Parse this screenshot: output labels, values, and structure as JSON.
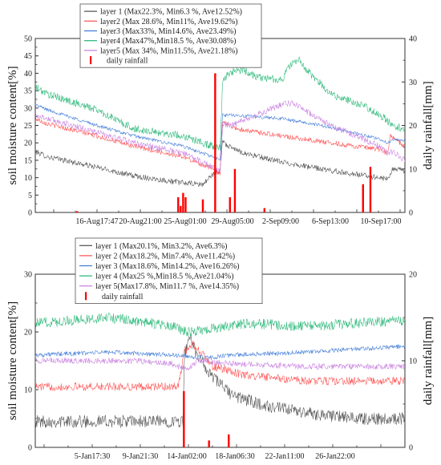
{
  "chart_data": [
    {
      "type": "line",
      "ylabel": "soil moisture content[%]",
      "y2label": "daily rainfall[mm]",
      "ylim": [
        0,
        50
      ],
      "y2lim": [
        0,
        40
      ],
      "yticks": [
        0,
        5,
        10,
        15,
        20,
        25,
        30,
        35,
        40,
        45,
        50
      ],
      "y2ticks": [
        0,
        10,
        20,
        30,
        40
      ],
      "x_tick_labels": [
        "16-Aug17:47",
        "20-Aug21:00",
        "25-Aug01:00",
        "29-Aug05:00",
        "2-Sep09:00",
        "6-Sep13:00",
        "10-Sep17:00"
      ],
      "legend_position": "top-center",
      "series": [
        {
          "name": "layer 1 (Max22.3%, Min6.3 %, Ave12.52%)",
          "color": "#4d4d4d",
          "noise": 0.8,
          "points": [
            [
              0,
              17.5
            ],
            [
              5,
              16
            ],
            [
              25,
              13
            ],
            [
              40,
              10.5
            ],
            [
              60,
              8.5
            ],
            [
              68,
              8
            ],
            [
              72,
              11
            ],
            [
              75,
              12
            ],
            [
              76,
              21
            ],
            [
              78,
              19
            ],
            [
              85,
              17
            ],
            [
              100,
              14.5
            ],
            [
              120,
              12
            ],
            [
              140,
              10
            ],
            [
              143,
              9.5
            ],
            [
              145,
              12.5
            ],
            [
              150,
              12
            ]
          ]
        },
        {
          "name": "layer2 (Max 28.6%, Min11%, Ave19.62%)",
          "color": "#ff4d4d",
          "noise": 0.7,
          "points": [
            [
              0,
              27
            ],
            [
              5,
              25.5
            ],
            [
              25,
              22
            ],
            [
              40,
              19
            ],
            [
              60,
              16
            ],
            [
              72,
              12.5
            ],
            [
              75,
              11
            ],
            [
              76,
              26.5
            ],
            [
              78,
              25.5
            ],
            [
              82,
              24
            ],
            [
              100,
              22
            ],
            [
              120,
              20
            ],
            [
              140,
              18
            ],
            [
              143,
              17
            ],
            [
              144,
              22
            ],
            [
              145,
              21.5
            ],
            [
              150,
              19
            ]
          ]
        },
        {
          "name": "layer3 (Max33%, Min14.6%, Ave23.49%)",
          "color": "#3b78d8",
          "noise": 0.5,
          "points": [
            [
              0,
              31
            ],
            [
              5,
              29.5
            ],
            [
              25,
              25
            ],
            [
              40,
              22
            ],
            [
              60,
              19
            ],
            [
              72,
              16
            ],
            [
              75,
              15
            ],
            [
              76,
              28
            ],
            [
              80,
              28
            ],
            [
              100,
              27
            ],
            [
              120,
              24.5
            ],
            [
              140,
              21
            ],
            [
              143,
              20
            ],
            [
              145,
              21
            ],
            [
              150,
              20.5
            ]
          ]
        },
        {
          "name": "layer4 (Max47%,Min18.5 %, Ave30.08%)",
          "color": "#22b573",
          "noise": 1.1,
          "points": [
            [
              0,
              36
            ],
            [
              5,
              34
            ],
            [
              25,
              29.5
            ],
            [
              40,
              24
            ],
            [
              60,
              22
            ],
            [
              72,
              19
            ],
            [
              75,
              18.5
            ],
            [
              76,
              37
            ],
            [
              78,
              40
            ],
            [
              84,
              41
            ],
            [
              90,
              39
            ],
            [
              100,
              38
            ],
            [
              103,
              42
            ],
            [
              107,
              44
            ],
            [
              110,
              41
            ],
            [
              120,
              34
            ],
            [
              135,
              30
            ],
            [
              142,
              27
            ],
            [
              145,
              25
            ],
            [
              150,
              24
            ]
          ]
        },
        {
          "name": "layer5 (Max 34%, Min11.5%, Ave21.18%)",
          "color": "#c77ddf",
          "noise": 0.9,
          "points": [
            [
              0,
              28
            ],
            [
              5,
              27
            ],
            [
              25,
              23
            ],
            [
              40,
              20
            ],
            [
              60,
              17
            ],
            [
              72,
              13
            ],
            [
              75,
              11.5
            ],
            [
              76,
              25.5
            ],
            [
              80,
              25
            ],
            [
              90,
              28
            ],
            [
              100,
              31
            ],
            [
              105,
              31.5
            ],
            [
              110,
              29
            ],
            [
              120,
              25
            ],
            [
              140,
              19
            ],
            [
              143,
              17
            ],
            [
              145,
              17.5
            ],
            [
              150,
              15
            ]
          ]
        }
      ],
      "rainfall": {
        "name": "daily rainfall",
        "color": "#ff0000",
        "x": [
          17,
          58,
          59,
          60,
          61,
          68,
          73,
          79,
          81,
          93,
          133,
          136
        ],
        "values": [
          0.3,
          3.5,
          1.5,
          4.5,
          3.5,
          3,
          32,
          3.5,
          10,
          1,
          6.5,
          10.5
        ]
      }
    },
    {
      "type": "line",
      "ylabel": "soil moisture content[%]",
      "y2label": "daily rainfall[mm]",
      "ylim": [
        0,
        30
      ],
      "y2lim": [
        0,
        20
      ],
      "yticks": [
        0,
        10,
        20,
        30
      ],
      "y2ticks": [
        0,
        10,
        20
      ],
      "x_tick_labels": [
        "5-Jan17:30",
        "9-Jan21:30",
        "14-Jan02:00",
        "18-Jan06:30",
        "22-Jan11:00",
        "26-Jan22:00"
      ],
      "legend_position": "top-center",
      "series": [
        {
          "name": "layer 1 (Max20.1%, Min3.2%, Ave6.3%)",
          "color": "#4d4d4d",
          "noise": 1.1,
          "points": [
            [
              0,
              4.5
            ],
            [
              40,
              4.5
            ],
            [
              60,
              4.5
            ],
            [
              60.5,
              16
            ],
            [
              63,
              19
            ],
            [
              66,
              16
            ],
            [
              70,
              13
            ],
            [
              75,
              11
            ],
            [
              80,
              9
            ],
            [
              95,
              7
            ],
            [
              110,
              6
            ],
            [
              130,
              5
            ],
            [
              150,
              5
            ]
          ]
        },
        {
          "name": "layer 2 (Max18.2%, Min7.4%, Ave11.42%)",
          "color": "#ff4d4d",
          "noise": 0.7,
          "points": [
            [
              0,
              10.5
            ],
            [
              40,
              10.5
            ],
            [
              58,
              10.5
            ],
            [
              60.5,
              16.5
            ],
            [
              64,
              18
            ],
            [
              68,
              16
            ],
            [
              72,
              14
            ],
            [
              85,
              12.5
            ],
            [
              110,
              11.5
            ],
            [
              150,
              11.5
            ]
          ]
        },
        {
          "name": "layer 3 (Max18.6%, Min14.2%, Ave16.26%)",
          "color": "#3b78d8",
          "noise": 0.4,
          "points": [
            [
              0,
              16
            ],
            [
              30,
              16.5
            ],
            [
              55,
              16
            ],
            [
              70,
              15.5
            ],
            [
              80,
              16
            ],
            [
              110,
              16.5
            ],
            [
              150,
              17.5
            ]
          ]
        },
        {
          "name": "layer 4 (Max25 %,Min18.5 %,Ave21.04%)",
          "color": "#22b573",
          "noise": 0.9,
          "points": [
            [
              0,
              21.5
            ],
            [
              30,
              22.5
            ],
            [
              55,
              21
            ],
            [
              62,
              20
            ],
            [
              70,
              20.5
            ],
            [
              85,
              21.5
            ],
            [
              110,
              21
            ],
            [
              150,
              22
            ]
          ]
        },
        {
          "name": "layer 5(Max17.8%, Min11.7 %, Ave14.35%)",
          "color": "#c77ddf",
          "noise": 0.5,
          "points": [
            [
              0,
              15
            ],
            [
              40,
              15
            ],
            [
              55,
              14.5
            ],
            [
              62,
              13.5
            ],
            [
              66,
              15
            ],
            [
              80,
              14.5
            ],
            [
              110,
              14
            ],
            [
              150,
              14
            ]
          ]
        }
      ],
      "rainfall": {
        "name": "daily rainfall",
        "color": "#ff0000",
        "x": [
          60.3,
          70.5,
          78.5
        ],
        "values": [
          6.5,
          0.8,
          1.5
        ]
      }
    }
  ]
}
